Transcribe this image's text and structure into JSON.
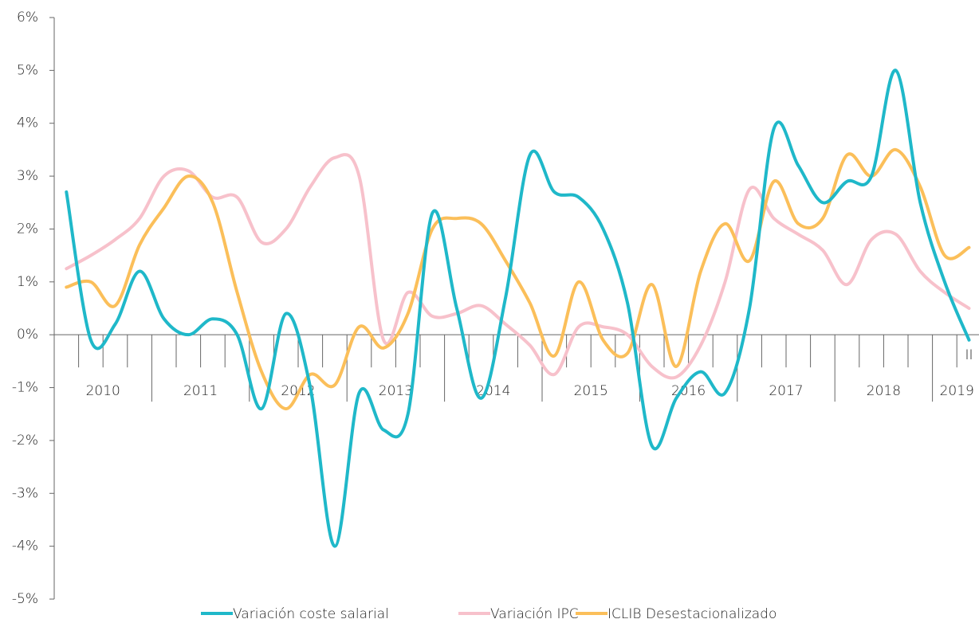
{
  "chart_data": {
    "type": "line",
    "categories": [
      null,
      null,
      null,
      null,
      null,
      null,
      null,
      null,
      null,
      null,
      null,
      null,
      null,
      null,
      null,
      null,
      null,
      null,
      null,
      null,
      null,
      null,
      null,
      null,
      null,
      null,
      null,
      null,
      null,
      null,
      null,
      null,
      null,
      null,
      null,
      null,
      null,
      "II"
    ],
    "year_groups": [
      "2010",
      "2011",
      "2012",
      "2013",
      "2014",
      "2015",
      "2016",
      "2017",
      "2018",
      "2019"
    ],
    "series": [
      {
        "name": "Variación coste salarial",
        "color": "#1fb8c9",
        "values": [
          2.7,
          -0.1,
          0.2,
          1.2,
          0.3,
          0.0,
          0.3,
          0.0,
          -1.4,
          0.4,
          -1.0,
          -4.0,
          -1.1,
          -1.8,
          -1.5,
          2.3,
          0.5,
          -1.2,
          0.7,
          3.4,
          2.7,
          2.6,
          2.0,
          0.6,
          -2.1,
          -1.2,
          -0.7,
          -1.1,
          0.5,
          3.9,
          3.2,
          2.5,
          2.9,
          3.0,
          5.0,
          2.5,
          1.0,
          -0.1
        ]
      },
      {
        "name": "Variación IPC",
        "color": "#f7c1cb",
        "values": [
          1.25,
          1.5,
          1.8,
          2.2,
          3.0,
          3.1,
          2.6,
          2.6,
          1.75,
          2.0,
          2.8,
          3.35,
          3.0,
          -0.1,
          0.8,
          0.35,
          0.4,
          0.55,
          0.2,
          -0.2,
          -0.75,
          0.15,
          0.15,
          0.0,
          -0.6,
          -0.8,
          -0.2,
          1.0,
          2.75,
          2.2,
          1.9,
          1.6,
          0.95,
          1.8,
          1.9,
          1.2,
          0.8,
          0.5
        ]
      },
      {
        "name": "ICLIB Desestacionalizado",
        "color": "#fbbf5a",
        "values": [
          0.9,
          1.0,
          0.55,
          1.7,
          2.4,
          3.0,
          2.5,
          0.8,
          -0.7,
          -1.4,
          -0.75,
          -0.95,
          0.15,
          -0.25,
          0.4,
          2.0,
          2.2,
          2.1,
          1.4,
          0.6,
          -0.4,
          1.0,
          -0.1,
          -0.35,
          0.95,
          -0.6,
          1.2,
          2.1,
          1.4,
          2.9,
          2.1,
          2.2,
          3.4,
          3.0,
          3.5,
          2.8,
          1.5,
          1.65
        ]
      }
    ],
    "ylim": [
      -5,
      6
    ],
    "yticks": [
      {
        "value": -5,
        "label": "-5%"
      },
      {
        "value": -4,
        "label": "-4%"
      },
      {
        "value": -3,
        "label": "-3%"
      },
      {
        "value": -2,
        "label": "-2%"
      },
      {
        "value": -1,
        "label": "-1%"
      },
      {
        "value": 0,
        "label": "0%"
      },
      {
        "value": 1,
        "label": "1%"
      },
      {
        "value": 2,
        "label": "2%"
      },
      {
        "value": 3,
        "label": "3%"
      },
      {
        "value": 4,
        "label": "4%"
      },
      {
        "value": 5,
        "label": "5%"
      },
      {
        "value": 6,
        "label": "6%"
      }
    ],
    "grid": false,
    "legend": "bottom"
  }
}
